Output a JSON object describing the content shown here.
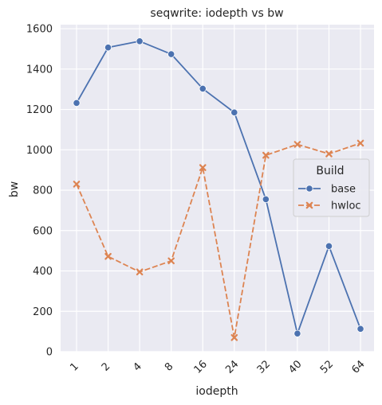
{
  "chart_data": {
    "type": "line",
    "title": "seqwrite: iodepth vs bw",
    "xlabel": "iodepth",
    "ylabel": "bw",
    "categories": [
      "1",
      "2",
      "4",
      "8",
      "16",
      "24",
      "32",
      "40",
      "52",
      "64"
    ],
    "ylim": [
      0,
      1620
    ],
    "yticks": [
      0,
      200,
      400,
      600,
      800,
      1000,
      1200,
      1400,
      1600
    ],
    "grid": true,
    "legend": {
      "title": "Build",
      "placement": "center-right"
    },
    "series": [
      {
        "name": "base",
        "color": "#4c72b0",
        "marker": "circle",
        "linestyle": "solid",
        "values": [
          1232,
          1507,
          1538,
          1474,
          1303,
          1185,
          755,
          90,
          523,
          113
        ]
      },
      {
        "name": "hwloc",
        "color": "#dd8452",
        "marker": "x",
        "linestyle": "dashed",
        "values": [
          830,
          472,
          395,
          450,
          912,
          70,
          973,
          1027,
          980,
          1033
        ]
      }
    ]
  }
}
